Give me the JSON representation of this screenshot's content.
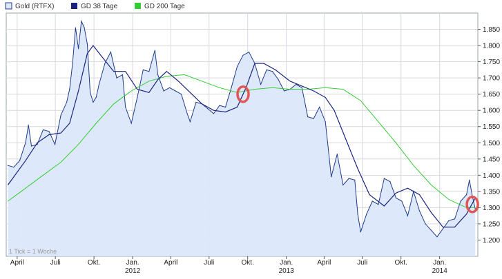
{
  "chart_data": {
    "type": "line",
    "title": "",
    "xlabel": "",
    "ylabel": "",
    "ylim": [
      1150,
      1900
    ],
    "yticks": [
      1200,
      1250,
      1300,
      1350,
      1400,
      1450,
      1500,
      1550,
      1600,
      1650,
      1700,
      1750,
      1800,
      1850
    ],
    "ytick_labels": [
      "1.200",
      "1.250",
      "1.300",
      "1.350",
      "1.400",
      "1.450",
      "1.500",
      "1.550",
      "1.600",
      "1.650",
      "1.700",
      "1.750",
      "1.800",
      "1.850"
    ],
    "x_ticks": [
      {
        "label": "April",
        "year": "",
        "date": "2011-04"
      },
      {
        "label": "Juli",
        "year": "",
        "date": "2011-07"
      },
      {
        "label": "Okt.",
        "year": "",
        "date": "2011-10"
      },
      {
        "label": "Jan.",
        "year": "2012",
        "date": "2012-01"
      },
      {
        "label": "April",
        "year": "",
        "date": "2012-04"
      },
      {
        "label": "Juli",
        "year": "",
        "date": "2012-07"
      },
      {
        "label": "Okt.",
        "year": "",
        "date": "2012-10"
      },
      {
        "label": "Jan.",
        "year": "2013",
        "date": "2013-01"
      },
      {
        "label": "April",
        "year": "",
        "date": "2013-04"
      },
      {
        "label": "Juli",
        "year": "",
        "date": "2013-07"
      },
      {
        "label": "Okt.",
        "year": "",
        "date": "2013-10"
      },
      {
        "label": "Jan.",
        "year": "2014",
        "date": "2014-01"
      }
    ],
    "grid": true,
    "legend_position": "top-left",
    "note": "1 Tick = 1 Woche",
    "series": [
      {
        "name": "Gold (RTFX)",
        "color": "#1f3a8a",
        "fill": "#dbe8fa",
        "style": "area",
        "points": [
          [
            "2011-03-10",
            1430
          ],
          [
            "2011-03-24",
            1425
          ],
          [
            "2011-04-07",
            1445
          ],
          [
            "2011-04-21",
            1500
          ],
          [
            "2011-04-28",
            1555
          ],
          [
            "2011-05-05",
            1490
          ],
          [
            "2011-05-19",
            1495
          ],
          [
            "2011-06-02",
            1540
          ],
          [
            "2011-06-16",
            1535
          ],
          [
            "2011-06-30",
            1495
          ],
          [
            "2011-07-14",
            1585
          ],
          [
            "2011-07-28",
            1625
          ],
          [
            "2011-08-04",
            1665
          ],
          [
            "2011-08-11",
            1745
          ],
          [
            "2011-08-18",
            1855
          ],
          [
            "2011-08-25",
            1790
          ],
          [
            "2011-09-01",
            1875
          ],
          [
            "2011-09-08",
            1855
          ],
          [
            "2011-09-15",
            1805
          ],
          [
            "2011-09-22",
            1655
          ],
          [
            "2011-09-29",
            1625
          ],
          [
            "2011-10-06",
            1640
          ],
          [
            "2011-10-13",
            1680
          ],
          [
            "2011-10-27",
            1745
          ],
          [
            "2011-11-10",
            1780
          ],
          [
            "2011-11-24",
            1700
          ],
          [
            "2011-12-08",
            1710
          ],
          [
            "2011-12-15",
            1610
          ],
          [
            "2011-12-29",
            1560
          ],
          [
            "2012-01-12",
            1640
          ],
          [
            "2012-01-26",
            1725
          ],
          [
            "2012-02-09",
            1720
          ],
          [
            "2012-02-23",
            1785
          ],
          [
            "2012-03-01",
            1710
          ],
          [
            "2012-03-15",
            1660
          ],
          [
            "2012-03-29",
            1670
          ],
          [
            "2012-04-12",
            1660
          ],
          [
            "2012-04-26",
            1650
          ],
          [
            "2012-05-10",
            1590
          ],
          [
            "2012-05-17",
            1565
          ],
          [
            "2012-05-31",
            1625
          ],
          [
            "2012-06-14",
            1620
          ],
          [
            "2012-06-28",
            1605
          ],
          [
            "2012-07-12",
            1590
          ],
          [
            "2012-07-26",
            1615
          ],
          [
            "2012-08-09",
            1610
          ],
          [
            "2012-08-23",
            1670
          ],
          [
            "2012-09-06",
            1735
          ],
          [
            "2012-09-20",
            1770
          ],
          [
            "2012-10-04",
            1780
          ],
          [
            "2012-10-18",
            1745
          ],
          [
            "2012-11-01",
            1680
          ],
          [
            "2012-11-15",
            1725
          ],
          [
            "2012-11-29",
            1720
          ],
          [
            "2012-12-13",
            1695
          ],
          [
            "2012-12-27",
            1660
          ],
          [
            "2013-01-10",
            1665
          ],
          [
            "2013-01-24",
            1680
          ],
          [
            "2013-02-07",
            1670
          ],
          [
            "2013-02-21",
            1580
          ],
          [
            "2013-03-07",
            1575
          ],
          [
            "2013-03-21",
            1610
          ],
          [
            "2013-04-04",
            1565
          ],
          [
            "2013-04-11",
            1480
          ],
          [
            "2013-04-18",
            1395
          ],
          [
            "2013-05-02",
            1465
          ],
          [
            "2013-05-16",
            1370
          ],
          [
            "2013-05-30",
            1390
          ],
          [
            "2013-06-13",
            1385
          ],
          [
            "2013-06-20",
            1280
          ],
          [
            "2013-06-27",
            1225
          ],
          [
            "2013-07-11",
            1280
          ],
          [
            "2013-07-25",
            1320
          ],
          [
            "2013-08-08",
            1310
          ],
          [
            "2013-08-22",
            1390
          ],
          [
            "2013-09-05",
            1380
          ],
          [
            "2013-09-19",
            1330
          ],
          [
            "2013-10-03",
            1320
          ],
          [
            "2013-10-17",
            1275
          ],
          [
            "2013-10-31",
            1350
          ],
          [
            "2013-11-14",
            1290
          ],
          [
            "2013-11-28",
            1250
          ],
          [
            "2013-12-12",
            1230
          ],
          [
            "2013-12-26",
            1210
          ],
          [
            "2014-01-09",
            1235
          ],
          [
            "2014-01-23",
            1260
          ],
          [
            "2014-02-06",
            1265
          ],
          [
            "2014-02-20",
            1320
          ],
          [
            "2014-03-06",
            1340
          ],
          [
            "2014-03-13",
            1385
          ],
          [
            "2014-03-20",
            1335
          ],
          [
            "2014-03-27",
            1295
          ]
        ]
      },
      {
        "name": "GD 38 Tage",
        "color": "#1a237e",
        "style": "line",
        "points": [
          [
            "2011-03-10",
            1370
          ],
          [
            "2011-04-21",
            1445
          ],
          [
            "2011-05-19",
            1500
          ],
          [
            "2011-06-16",
            1525
          ],
          [
            "2011-07-14",
            1530
          ],
          [
            "2011-08-04",
            1560
          ],
          [
            "2011-08-25",
            1660
          ],
          [
            "2011-09-15",
            1775
          ],
          [
            "2011-09-29",
            1800
          ],
          [
            "2011-10-20",
            1765
          ],
          [
            "2011-11-17",
            1720
          ],
          [
            "2011-12-15",
            1720
          ],
          [
            "2012-01-12",
            1665
          ],
          [
            "2012-02-09",
            1655
          ],
          [
            "2012-03-01",
            1695
          ],
          [
            "2012-03-22",
            1720
          ],
          [
            "2012-04-19",
            1690
          ],
          [
            "2012-05-17",
            1655
          ],
          [
            "2012-06-14",
            1620
          ],
          [
            "2012-07-12",
            1600
          ],
          [
            "2012-08-09",
            1595
          ],
          [
            "2012-09-06",
            1610
          ],
          [
            "2012-09-27",
            1670
          ],
          [
            "2012-10-18",
            1745
          ],
          [
            "2012-11-08",
            1745
          ],
          [
            "2012-12-06",
            1725
          ],
          [
            "2013-01-10",
            1690
          ],
          [
            "2013-02-07",
            1675
          ],
          [
            "2013-03-07",
            1660
          ],
          [
            "2013-04-04",
            1640
          ],
          [
            "2013-04-25",
            1600
          ],
          [
            "2013-05-23",
            1510
          ],
          [
            "2013-06-20",
            1420
          ],
          [
            "2013-07-18",
            1340
          ],
          [
            "2013-08-22",
            1305
          ],
          [
            "2013-09-19",
            1345
          ],
          [
            "2013-10-17",
            1360
          ],
          [
            "2013-11-14",
            1340
          ],
          [
            "2013-12-12",
            1285
          ],
          [
            "2014-01-09",
            1240
          ],
          [
            "2014-02-06",
            1240
          ],
          [
            "2014-03-06",
            1280
          ],
          [
            "2014-03-27",
            1330
          ]
        ]
      },
      {
        "name": "GD 200 Tage",
        "color": "#33cc33",
        "style": "line",
        "points": [
          [
            "2011-03-10",
            1320
          ],
          [
            "2011-04-21",
            1360
          ],
          [
            "2011-06-02",
            1400
          ],
          [
            "2011-07-14",
            1440
          ],
          [
            "2011-08-25",
            1495
          ],
          [
            "2011-10-06",
            1560
          ],
          [
            "2011-11-17",
            1620
          ],
          [
            "2011-12-29",
            1660
          ],
          [
            "2012-02-09",
            1690
          ],
          [
            "2012-03-22",
            1705
          ],
          [
            "2012-05-03",
            1710
          ],
          [
            "2012-06-14",
            1690
          ],
          [
            "2012-07-26",
            1670
          ],
          [
            "2012-09-06",
            1655
          ],
          [
            "2012-10-18",
            1665
          ],
          [
            "2012-11-29",
            1670
          ],
          [
            "2013-01-10",
            1665
          ],
          [
            "2013-02-21",
            1665
          ],
          [
            "2013-04-04",
            1670
          ],
          [
            "2013-05-16",
            1665
          ],
          [
            "2013-06-27",
            1630
          ],
          [
            "2013-08-08",
            1565
          ],
          [
            "2013-09-19",
            1500
          ],
          [
            "2013-10-31",
            1430
          ],
          [
            "2013-12-12",
            1370
          ],
          [
            "2014-01-23",
            1325
          ],
          [
            "2014-03-06",
            1300
          ],
          [
            "2014-03-27",
            1300
          ]
        ]
      }
    ],
    "annotations": [
      {
        "name": "crossover-marker-1",
        "date": "2012-09-20",
        "value": 1650,
        "color": "#e05555"
      },
      {
        "name": "crossover-marker-2",
        "date": "2014-03-20",
        "value": 1310,
        "color": "#e05555"
      }
    ]
  }
}
